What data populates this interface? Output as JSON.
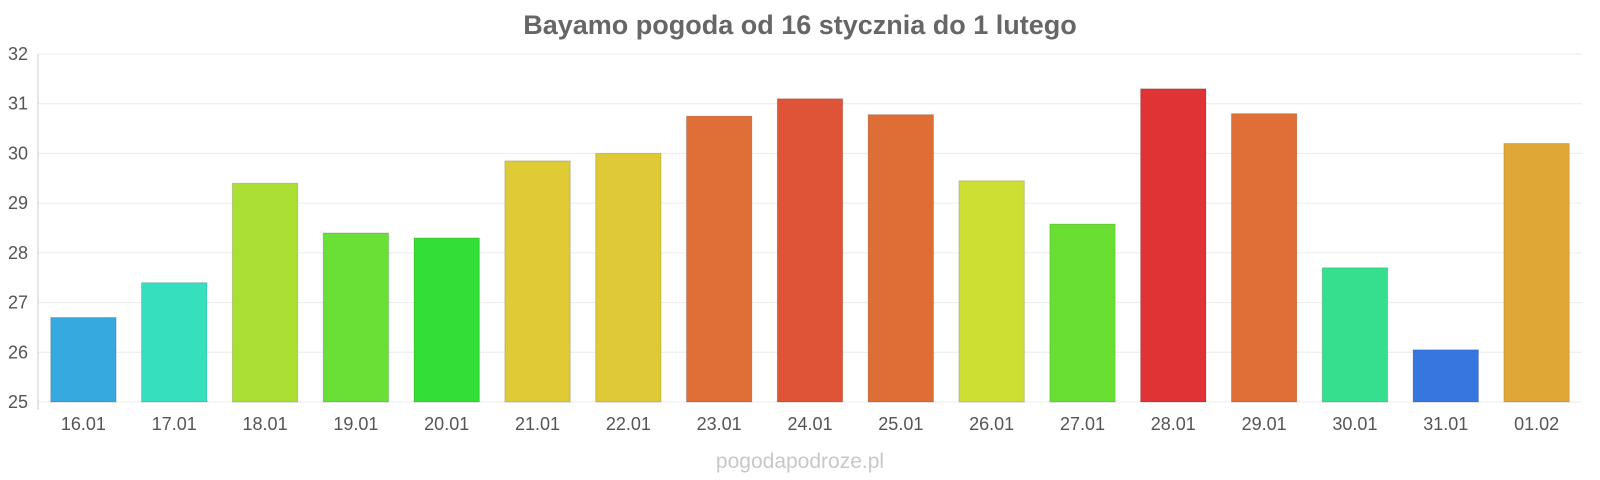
{
  "chart_data": {
    "type": "bar",
    "title": "Bayamo pogoda od 16 stycznia do 1 lutego",
    "xlabel": "",
    "ylabel": "",
    "ylim": [
      25,
      32
    ],
    "yticks": [
      25,
      26,
      27,
      28,
      29,
      30,
      31,
      32
    ],
    "grid": true,
    "categories": [
      "16.01",
      "17.01",
      "18.01",
      "19.01",
      "20.01",
      "21.01",
      "22.01",
      "23.01",
      "24.01",
      "25.01",
      "26.01",
      "27.01",
      "28.01",
      "29.01",
      "30.01",
      "31.01",
      "01.02"
    ],
    "values": [
      26.7,
      27.4,
      29.4,
      28.4,
      28.3,
      29.85,
      30.0,
      30.75,
      31.1,
      30.78,
      29.45,
      28.58,
      31.3,
      30.8,
      27.7,
      26.05,
      30.2
    ],
    "colors": [
      "#36a9df",
      "#36dfbe",
      "#abdf33",
      "#6adf36",
      "#33df36",
      "#dfcb36",
      "#dfc936",
      "#df6f36",
      "#df5436",
      "#df6d36",
      "#cddf33",
      "#6adf33",
      "#df3336",
      "#df6f36",
      "#36df8d",
      "#3677df",
      "#dfa736"
    ]
  },
  "watermark": "pogodapodroze.pl"
}
